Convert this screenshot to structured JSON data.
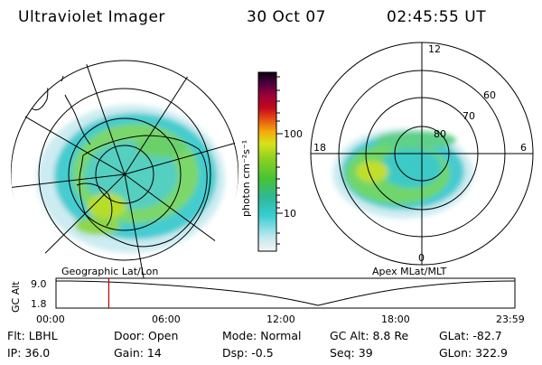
{
  "header": {
    "title": "Ultraviolet Imager",
    "date": "30 Oct 07",
    "time": "02:45:55 UT"
  },
  "left_map": {
    "caption": "Geographic Lat/Lon"
  },
  "right_map": {
    "caption": "Apex MLat/MLT",
    "mlt_labels": {
      "top": "12",
      "bottom": "0",
      "left": "18",
      "right": "6"
    },
    "lat_labels": [
      "60",
      "70",
      "80"
    ]
  },
  "colorbar": {
    "unit_label": "photon cm⁻²s⁻¹",
    "ticks": [
      "100",
      "10"
    ],
    "scale": "log",
    "colors": [
      "#f4f4f4",
      "#bfe8ef",
      "#37cdd0",
      "#2fb89a",
      "#45c237",
      "#8ed11f",
      "#d8e31a",
      "#f3a80b",
      "#e85a12",
      "#c4081d",
      "#94003a",
      "#4a0040",
      "#0a0010"
    ]
  },
  "timeline": {
    "axis_label": "GC Alt",
    "y_ticks": [
      "9.0",
      "1.8"
    ],
    "x_ticks": [
      "00:00",
      "06:00",
      "12:00",
      "18:00",
      "23:59"
    ],
    "current_time_fraction": 0.115,
    "marker_color": "#c00000"
  },
  "info": {
    "flt": "Flt: LBHL",
    "ip": "IP: 36.0",
    "door": "Door: Open",
    "gain": "Gain: 14",
    "mode": "Mode: Normal",
    "dsp": "Dsp:    -0.5",
    "gcalt": "GC Alt: 8.8 Re",
    "seq": "Seq: 39",
    "glat": "GLat:   -82.7",
    "glon": "GLon: 322.9"
  }
}
